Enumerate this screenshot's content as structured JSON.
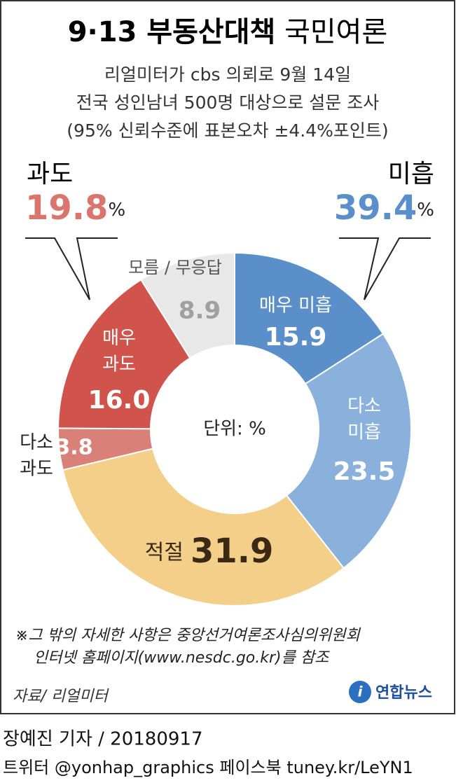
{
  "chart_data": {
    "type": "donut",
    "title": [
      "9·13 부동산대책",
      "국민여론"
    ],
    "subtitle": [
      "리얼미터가 cbs 의뢰로 9월 14일",
      "전국 성인남녀 500명 대상으로 설문 조사",
      "(95% 신뢰수준에 표본오차 ±4.4%포인트)"
    ],
    "categories": [
      "매우 미흡",
      "다소 미흡",
      "적절",
      "다소 과도",
      "매우 과도",
      "모름 / 무응답"
    ],
    "values": [
      15.9,
      23.5,
      31.9,
      3.8,
      16.0,
      8.9
    ],
    "value_labels": [
      "15.9",
      "23.5",
      "31.9",
      "3.8",
      "16.0",
      "8.9"
    ],
    "colors": [
      "#5b8fc9",
      "#8ab0dc",
      "#f3cf8a",
      "#d98079",
      "#d0544c",
      "#e8e8e8"
    ],
    "groups": [
      {
        "name": "과도",
        "value": 19.8,
        "color": "#d9756d"
      },
      {
        "name": "미흡",
        "value": 39.4,
        "color": "#5b8fc9"
      }
    ],
    "unit": "%",
    "center_label": "단위: %",
    "footnote": [
      "※그 밖의 자세한 사항은 중앙선거여론조사심의위원회",
      "인터넷 홈페이지(www.nesdc.go.kr)를 참조"
    ],
    "source": "자료/ 리얼미터",
    "logo": "연합뉴스",
    "byline": "장예진 기자 / 20180917",
    "social": "트위터 @yonhap_graphics  페이스북 tuney.kr/LeYN1"
  }
}
